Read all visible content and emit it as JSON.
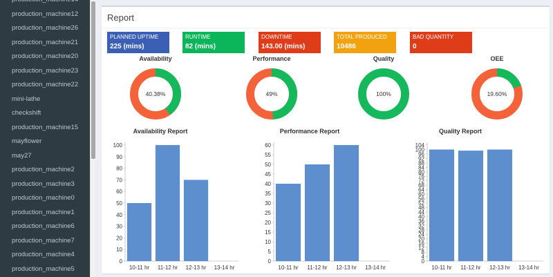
{
  "sidebar": {
    "items": [
      {
        "label": "production_machine14"
      },
      {
        "label": "production_machine12"
      },
      {
        "label": "production_machine26"
      },
      {
        "label": "production_machine21"
      },
      {
        "label": "production_machine20"
      },
      {
        "label": "production_machine23"
      },
      {
        "label": "production_machine22"
      },
      {
        "label": "mini-lathe"
      },
      {
        "label": "checkshift"
      },
      {
        "label": "production_machine15"
      },
      {
        "label": "mayflower"
      },
      {
        "label": "may27"
      },
      {
        "label": "production_machine2"
      },
      {
        "label": "production_machine3"
      },
      {
        "label": "production_machine0"
      },
      {
        "label": "production_machine1"
      },
      {
        "label": "production_machine6"
      },
      {
        "label": "production_machine7"
      },
      {
        "label": "production_machine4"
      },
      {
        "label": "production_machine5"
      }
    ]
  },
  "report": {
    "title": "Report",
    "stats": [
      {
        "label": "PLANNED UPTIME",
        "value": "225 (mins)",
        "color": "#3c5fb6"
      },
      {
        "label": "RUNTIME",
        "value": "82 (mins)",
        "color": "#0bb55a"
      },
      {
        "label": "DOWNTIME",
        "value": "143.00 (mins)",
        "color": "#df3d1a"
      },
      {
        "label": "TOTAL PRODUCED",
        "value": "10486",
        "color": "#f3a20f"
      },
      {
        "label": "BAD QUANTITY",
        "value": "0",
        "color": "#df3d1a"
      }
    ],
    "donuts": [
      {
        "title": "Availability",
        "center": "40.38%",
        "value": 40.38
      },
      {
        "title": "Performance",
        "center": "49%",
        "value": 49
      },
      {
        "title": "Quality",
        "center": "100%",
        "value": 100
      },
      {
        "title": "OEE",
        "center": "19.60%",
        "value": 19.6
      }
    ],
    "colors": {
      "good": "#16b85c",
      "bad": "#f4623a",
      "bar": "#5d8fce"
    }
  },
  "chart_data": [
    {
      "type": "bar",
      "title": "Availability Report",
      "categories": [
        "10-11 hr",
        "11-12 hr",
        "12-13 hr",
        "13-14 hr"
      ],
      "values": [
        50,
        100,
        70,
        null
      ],
      "yticks": [
        0,
        10,
        20,
        30,
        40,
        50,
        60,
        70,
        80,
        90,
        100
      ],
      "ylim": [
        0,
        100
      ]
    },
    {
      "type": "bar",
      "title": "Performance Report",
      "categories": [
        "10-11 hr",
        "11-12 hr",
        "12-13 hr",
        "13-14 hr"
      ],
      "values": [
        40,
        50,
        60,
        null
      ],
      "yticks": [
        0,
        5,
        10,
        15,
        20,
        25,
        30,
        35,
        40,
        45,
        50,
        55,
        60
      ],
      "ylim": [
        0,
        60
      ]
    },
    {
      "type": "bar",
      "title": "Quality Report",
      "categories": [
        "10-11 hr",
        "11-12 hr",
        "12-13 hr",
        "13-14 hr"
      ],
      "values": [
        100,
        99,
        100,
        null
      ],
      "yticks": [
        0,
        4,
        8,
        12,
        16,
        20,
        24,
        28,
        32,
        36,
        40,
        44,
        48,
        52,
        56,
        60,
        64,
        68,
        72,
        76,
        80,
        84,
        88,
        92,
        96,
        100,
        104
      ],
      "ylim": [
        0,
        104
      ]
    }
  ]
}
